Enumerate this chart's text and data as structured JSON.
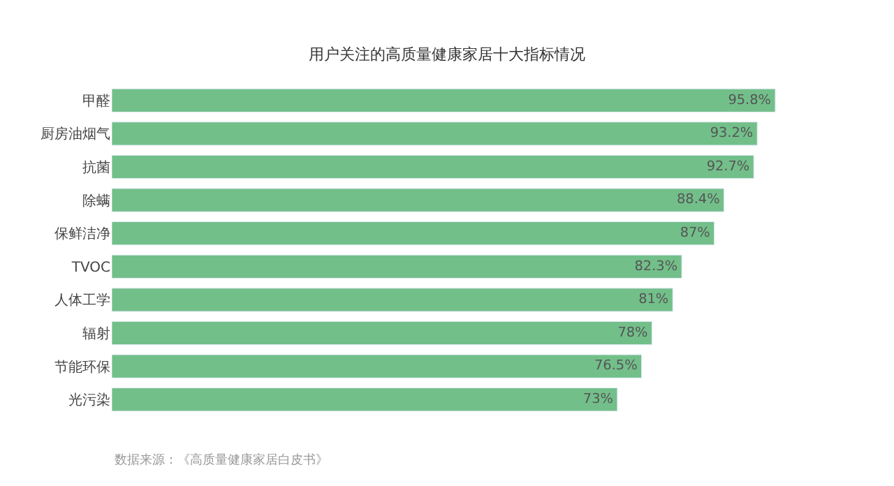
{
  "chart_data": {
    "type": "bar",
    "orientation": "horizontal",
    "title": "用户关注的高质量健康家居十大指标情况",
    "categories": [
      "甲醛",
      "厨房油烟气",
      "抗菌",
      "除螨",
      "保鲜洁净",
      "TVOC",
      "人体工学",
      "辐射",
      "节能环保",
      "光污染"
    ],
    "values": [
      95.8,
      93.2,
      92.7,
      88.4,
      87,
      82.3,
      81,
      78,
      76.5,
      73
    ],
    "value_labels": [
      "95.8%",
      "93.2%",
      "92.7%",
      "88.4%",
      "87%",
      "82.3%",
      "81%",
      "78%",
      "76.5%",
      "73%"
    ],
    "color": "#73bf8a",
    "annotations": [
      "数据来源：《高质量健康家居白皮书》"
    ]
  }
}
